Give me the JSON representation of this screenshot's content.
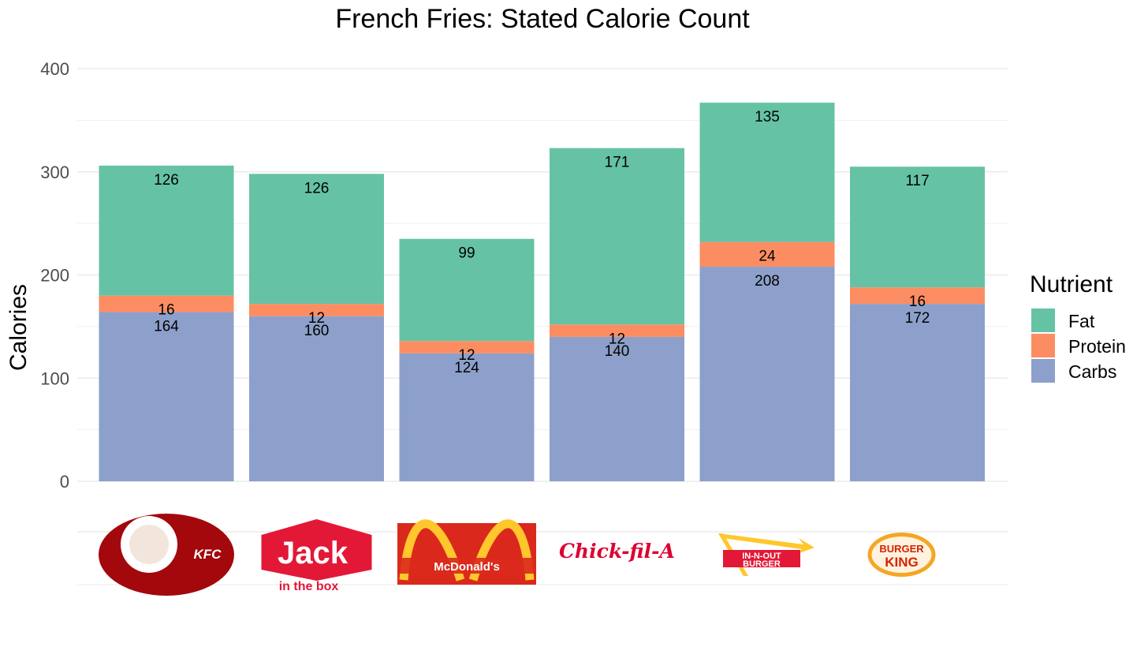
{
  "chart_data": {
    "type": "bar",
    "stacked": true,
    "title": "French Fries: Stated Calorie Count",
    "xlabel": "",
    "ylabel": "Calories",
    "ylim": [
      0,
      400
    ],
    "yticks": [
      0,
      100,
      200,
      300,
      400
    ],
    "grid": true,
    "categories": [
      "KFC",
      "Jack in the Box",
      "McDonald's",
      "Chick-fil-A",
      "In-N-Out Burger",
      "Burger King"
    ],
    "series": [
      {
        "name": "Carbs",
        "color": "#8da0cb",
        "values": [
          164,
          160,
          124,
          140,
          208,
          172
        ]
      },
      {
        "name": "Protein",
        "color": "#fc8d62",
        "values": [
          16,
          12,
          12,
          12,
          24,
          16
        ]
      },
      {
        "name": "Fat",
        "color": "#66c2a5",
        "values": [
          126,
          126,
          99,
          171,
          135,
          117
        ]
      }
    ],
    "legend": {
      "title": "Nutrient",
      "position": "right",
      "order": [
        "Fat",
        "Protein",
        "Carbs"
      ]
    },
    "logos": [
      {
        "brand": "KFC",
        "text": "KFC",
        "bg": "#a3080c",
        "fg": "#ffffff"
      },
      {
        "brand": "Jack in the Box",
        "text": "Jack",
        "subtext": "in the box",
        "bg": "#e31837",
        "fg": "#ffffff"
      },
      {
        "brand": "McDonald's",
        "text": "McDonald's",
        "bg": "#da291c",
        "fg": "#ffc72c"
      },
      {
        "brand": "Chick-fil-A",
        "text": "Chick-fil-A",
        "bg": "#ffffff",
        "fg": "#dd0031"
      },
      {
        "brand": "In-N-Out Burger",
        "text": "IN-N-OUT",
        "subtext": "BURGER",
        "bg": "#e31837",
        "fg": "#ffffff"
      },
      {
        "brand": "Burger King",
        "text": "BURGER",
        "subtext": "KING",
        "bg": "#f5a623",
        "fg": "#d62300"
      }
    ]
  }
}
